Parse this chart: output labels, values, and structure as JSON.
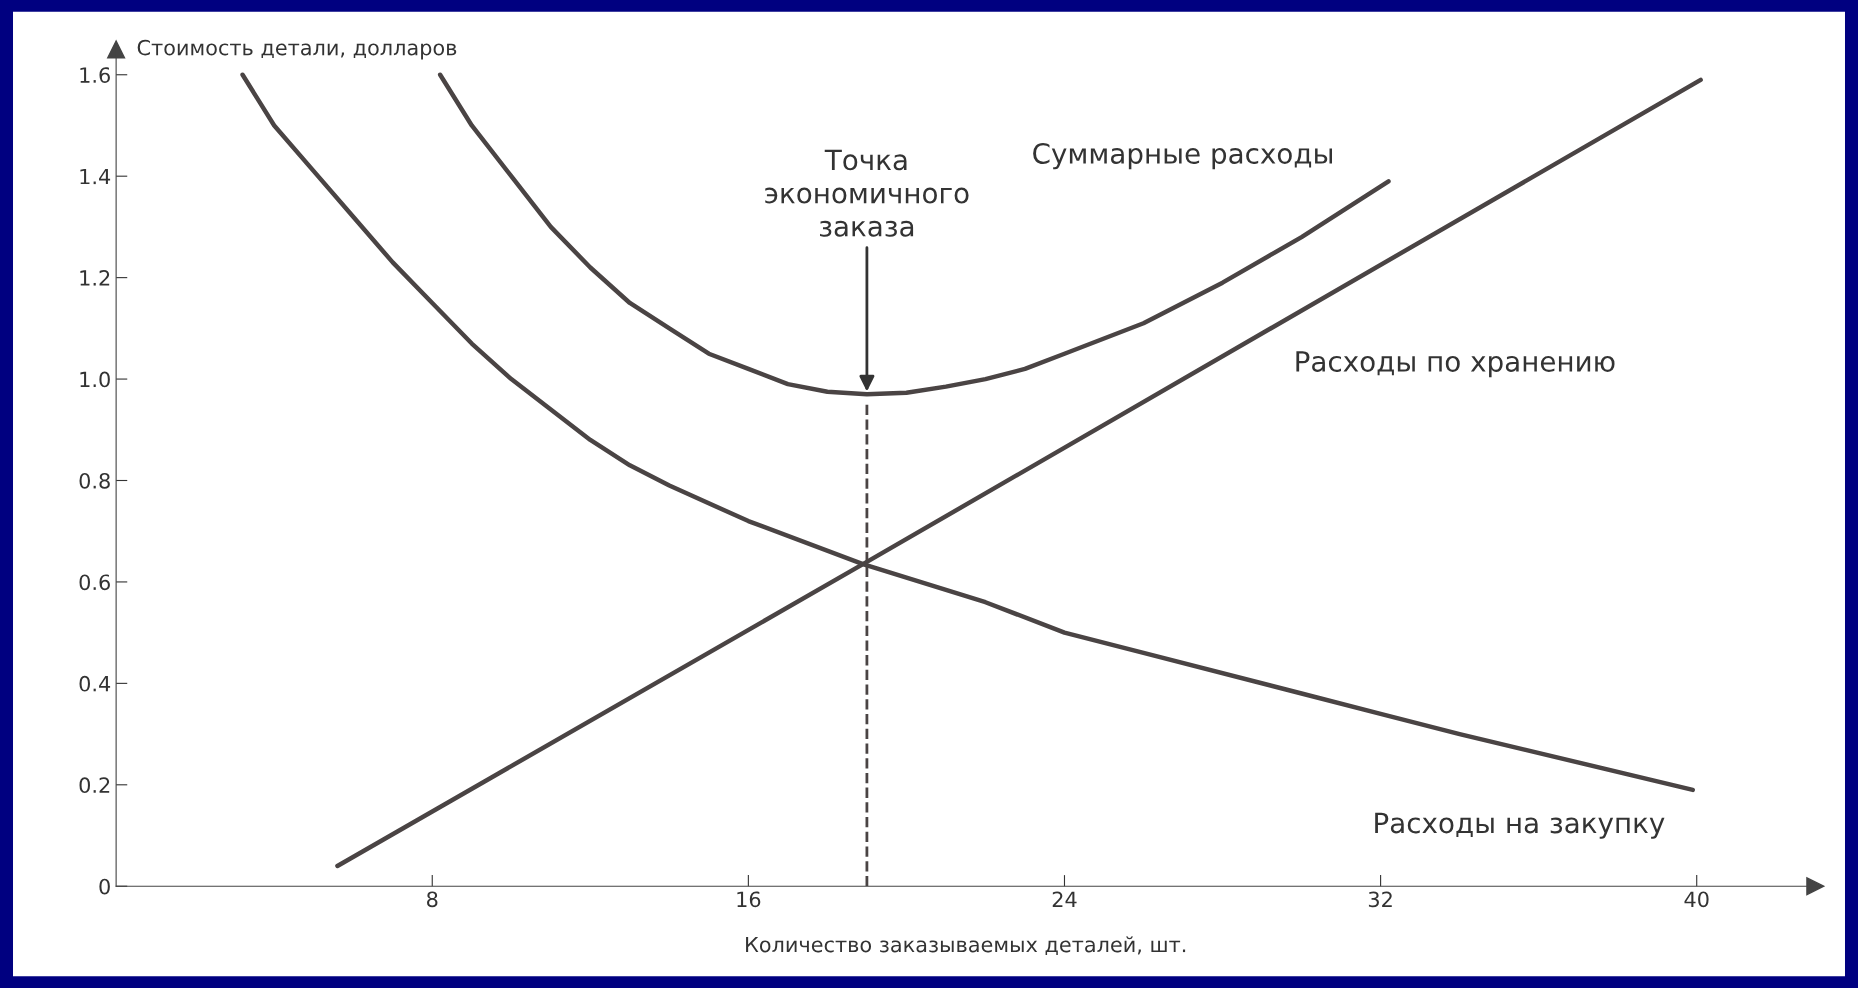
{
  "chart_data": {
    "type": "line",
    "xlabel": "Количество заказываемых деталей, шт.",
    "ylabel": "Стоимость детали, долларов",
    "xlim": [
      0,
      43
    ],
    "ylim": [
      0,
      1.65
    ],
    "xticks": [
      8,
      16,
      24,
      32,
      40
    ],
    "yticks": [
      0,
      0.2,
      0.4,
      0.6,
      0.8,
      {
        "value": 1,
        "label": "1.0"
      },
      1.2,
      1.4,
      1.6
    ],
    "grid": false,
    "legend": false,
    "marker": "none",
    "line_style": "solid",
    "series": [
      {
        "name": "Суммарные расходы",
        "color": "#4a4444",
        "x": [
          8.2,
          9.0,
          10.0,
          11.0,
          12.0,
          13.0,
          14.0,
          15.0,
          16.0,
          17.0,
          18.0,
          19.0,
          20.0,
          21.0,
          22.0,
          23.0,
          24.0,
          26.0,
          28.0,
          30.0,
          32.2
        ],
        "values": [
          1.6,
          1.5,
          1.4,
          1.3,
          1.22,
          1.15,
          1.1,
          1.05,
          1.02,
          0.99,
          0.975,
          0.97,
          0.973,
          0.985,
          1.0,
          1.02,
          1.05,
          1.11,
          1.19,
          1.28,
          1.39
        ]
      },
      {
        "name": "Расходы по хранению",
        "color": "#4a4444",
        "x": [
          5.6,
          18.9,
          40.1
        ],
        "values": [
          0.04,
          0.635,
          1.59
        ]
      },
      {
        "name": "Расходы на закупку",
        "color": "#4a4444",
        "x": [
          3.2,
          4.0,
          5.0,
          6.0,
          7.0,
          8.0,
          9.0,
          10.0,
          11.0,
          12.0,
          13.0,
          14.0,
          16.0,
          18.9,
          22.0,
          24.0,
          26.0,
          30.0,
          32.0,
          34.0,
          39.9
        ],
        "values": [
          1.6,
          1.5,
          1.41,
          1.32,
          1.23,
          1.15,
          1.07,
          1.0,
          0.94,
          0.88,
          0.83,
          0.79,
          0.72,
          0.635,
          0.56,
          0.5,
          0.46,
          0.38,
          0.34,
          0.3,
          0.19
        ]
      },
      {
        "color": "#4a4444",
        "line_style": "dashed",
        "x": [
          19.0,
          19.0
        ],
        "values": [
          0,
          0.95
        ]
      }
    ],
    "annotations": [
      {
        "text": "Точка\nэкономичного\nзаказа",
        "x": 19.0,
        "y": 0.97
      }
    ]
  }
}
